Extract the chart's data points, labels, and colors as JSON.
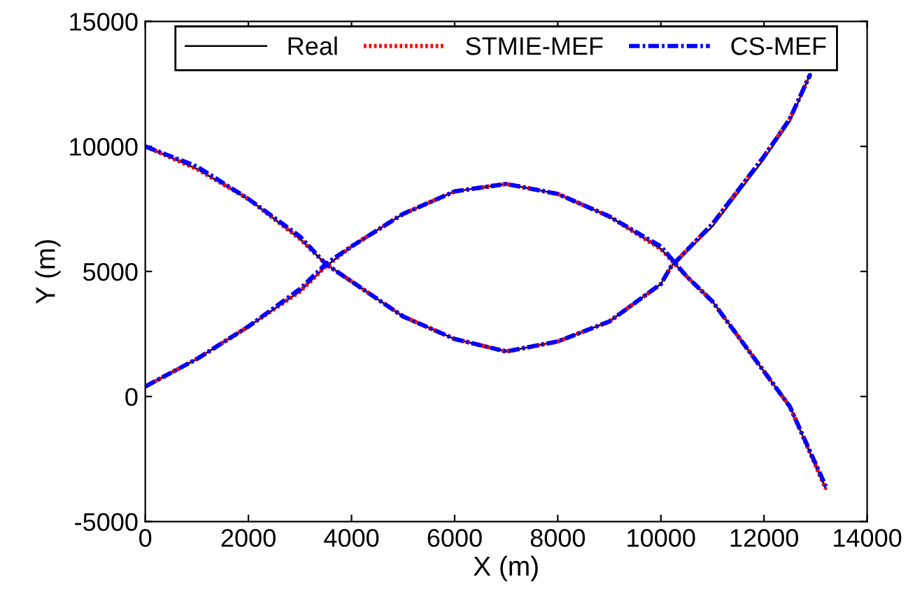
{
  "chart_data": {
    "type": "line",
    "xlabel": "X (m)",
    "ylabel": "Y (m)",
    "xlim": [
      0,
      14000
    ],
    "ylim": [
      -5000,
      15000
    ],
    "xticks": [
      0,
      2000,
      4000,
      6000,
      8000,
      10000,
      12000,
      14000
    ],
    "yticks": [
      -5000,
      0,
      5000,
      10000,
      15000
    ],
    "grid": false,
    "legend": "top",
    "marker": "none",
    "series": [
      {
        "name": "Real",
        "color": "#000000",
        "line_style": "solid",
        "x": [
          0,
          1000,
          2000,
          3000,
          3500,
          4000,
          5000,
          6000,
          7000,
          8000,
          9000,
          10000,
          10200,
          11000,
          12000,
          12500,
          12900,
          null,
          0,
          1000,
          2000,
          3000,
          3500,
          4000,
          5000,
          6000,
          7000,
          8000,
          9000,
          10000,
          10500,
          11000,
          12000,
          12500,
          13200
        ],
        "values": [
          10000,
          9100,
          7900,
          6300,
          5300,
          4600,
          3200,
          2300,
          1800,
          2200,
          3000,
          4500,
          5200,
          6800,
          9500,
          11000,
          12900,
          null,
          400,
          1500,
          2800,
          4200,
          5200,
          6000,
          7300,
          8200,
          8500,
          8100,
          7200,
          5900,
          4800,
          3800,
          1000,
          -400,
          -3700
        ]
      },
      {
        "name": "STMIE-MEF",
        "color": "#ff0000",
        "line_style": "dotted",
        "x": [
          0,
          1000,
          2000,
          3000,
          3500,
          4000,
          5000,
          6000,
          7000,
          8000,
          9000,
          10000,
          10200,
          11000,
          12000,
          12500,
          12900,
          null,
          0,
          1000,
          2000,
          3000,
          3500,
          4000,
          5000,
          6000,
          7000,
          8000,
          9000,
          10000,
          10500,
          11000,
          12000,
          12500,
          13200
        ],
        "values": [
          10000,
          9100,
          7900,
          6300,
          5300,
          4600,
          3200,
          2300,
          1800,
          2200,
          3000,
          4500,
          5200,
          6900,
          9600,
          11100,
          12900,
          null,
          400,
          1500,
          2800,
          4200,
          5200,
          6000,
          7300,
          8200,
          8500,
          8100,
          7200,
          5900,
          4800,
          3800,
          1000,
          -400,
          -3700
        ]
      },
      {
        "name": "CS-MEF",
        "color": "#0000ff",
        "line_style": "dashdot",
        "x": [
          0,
          1000,
          2000,
          3000,
          3500,
          4000,
          5000,
          6000,
          7000,
          8000,
          9000,
          10000,
          10200,
          11000,
          12000,
          12500,
          12900,
          null,
          0,
          1000,
          2000,
          3000,
          3500,
          4000,
          5000,
          6000,
          7000,
          8000,
          9000,
          10000,
          10500,
          11000,
          12000,
          12500,
          13200
        ],
        "values": [
          10000,
          9200,
          7900,
          6400,
          5300,
          4600,
          3200,
          2300,
          1800,
          2200,
          3000,
          4500,
          5200,
          6900,
          9600,
          11100,
          12900,
          null,
          400,
          1500,
          2800,
          4300,
          5300,
          6000,
          7300,
          8200,
          8500,
          8100,
          7200,
          6000,
          4800,
          3800,
          1000,
          -400,
          -3600
        ]
      }
    ]
  }
}
